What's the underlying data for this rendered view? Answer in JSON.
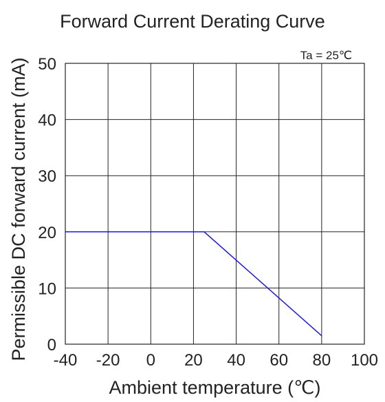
{
  "chart_data": {
    "type": "line",
    "title": "Forward Current Derating Curve",
    "xlabel": "Ambient temperature (℃)",
    "ylabel": "Permissible DC forward current (mA)",
    "xlim": [
      -40,
      100
    ],
    "ylim": [
      0,
      50
    ],
    "xticks": [
      -40,
      -20,
      0,
      20,
      40,
      60,
      80,
      100
    ],
    "yticks": [
      0,
      10,
      20,
      30,
      40,
      50
    ],
    "grid": true,
    "annotation": "Ta = 25℃",
    "series": [
      {
        "color": "#1a1ad8",
        "x": [
          -40,
          25,
          80
        ],
        "y": [
          20,
          20,
          1.5
        ]
      }
    ]
  }
}
